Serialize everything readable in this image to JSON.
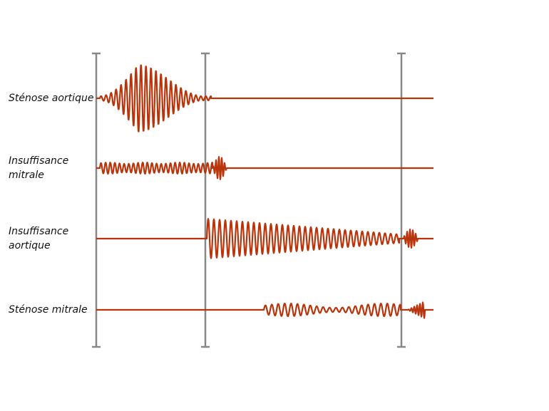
{
  "rows": [
    {
      "lines": [
        "Sténose aortique"
      ]
    },
    {
      "lines": [
        "Insuffisance",
        "mitrale"
      ]
    },
    {
      "lines": [
        "Insuffisance",
        "aortique"
      ]
    },
    {
      "lines": [
        "Sténose mitrale"
      ]
    }
  ]
}
